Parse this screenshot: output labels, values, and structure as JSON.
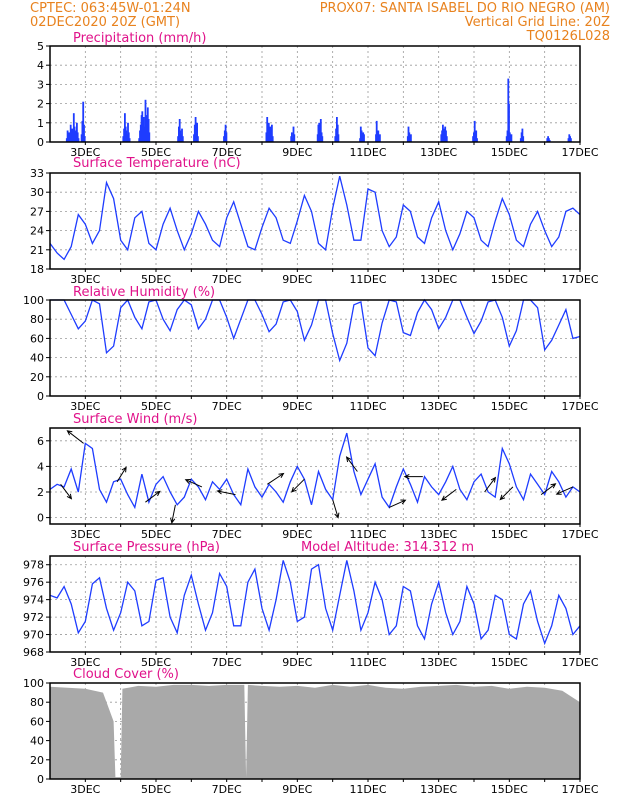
{
  "header": {
    "line1_left": "CPTEC:   063:45W-01:24N",
    "line1_right": "PROX07: SANTA ISABEL DO RIO NEGRO (AM)",
    "line2_left": "02DEC2020 20Z (GMT)",
    "line2_right": "Vertical Grid Line: 20Z",
    "line3_right": "TQ0126L028"
  },
  "colors": {
    "header": "#e8821e",
    "title": "#e0128a",
    "series": "#1e3cff",
    "cloud": "#a9a9a9"
  },
  "chart_data": [
    {
      "type": "bar",
      "title": "Precipitation (mm/h)",
      "x_tick_labels": [
        "3DEC",
        "5DEC",
        "7DEC",
        "9DEC",
        "11DEC",
        "13DEC",
        "15DEC",
        "17DEC"
      ],
      "ylim": [
        0,
        5
      ],
      "y_ticks": [
        "0",
        "1",
        "2",
        "3",
        "4",
        "5"
      ],
      "x_unit": "days since 02DEC2020 20Z",
      "bursts": [
        {
          "x": 0.45,
          "values": [
            0.2,
            0.6,
            0.4,
            0.5,
            0.3,
            0.9,
            0.5,
            0.7,
            0.4,
            1.5,
            0.8,
            0.6,
            0.3,
            1.0,
            0.5,
            0.2
          ]
        },
        {
          "x": 0.87,
          "values": [
            0.4,
            1.1,
            2.1,
            0.9,
            0.3
          ]
        },
        {
          "x": 2.05,
          "values": [
            0.3,
            0.7,
            1.5,
            0.8,
            0.6,
            0.4,
            1.0,
            0.5,
            0.2
          ]
        },
        {
          "x": 2.5,
          "values": [
            0.2,
            0.6,
            0.9,
            1.4,
            1.6,
            1.1,
            1.3,
            0.8,
            2.2,
            1.4,
            0.6,
            1.8,
            1.2,
            0.5
          ]
        },
        {
          "x": 3.6,
          "values": [
            0.3,
            0.8,
            1.2,
            0.6,
            0.4,
            0.7,
            0.3
          ]
        },
        {
          "x": 4.05,
          "values": [
            0.4,
            0.9,
            1.3,
            0.7,
            1.0,
            0.3
          ]
        },
        {
          "x": 4.9,
          "values": [
            0.3,
            0.6,
            0.9,
            0.5
          ]
        },
        {
          "x": 6.1,
          "values": [
            0.5,
            1.3,
            0.7,
            1.0,
            0.6,
            0.8,
            0.4,
            0.9,
            0.3
          ]
        },
        {
          "x": 6.8,
          "values": [
            0.3,
            0.5,
            0.2,
            0.8,
            0.4
          ]
        },
        {
          "x": 7.55,
          "values": [
            0.4,
            0.9,
            1.0,
            0.7,
            1.2,
            0.5,
            0.3
          ]
        },
        {
          "x": 8.05,
          "values": [
            0.3,
            0.7,
            1.3,
            0.9,
            0.4
          ]
        },
        {
          "x": 8.75,
          "values": [
            0.2,
            0.8,
            0.6,
            0.3,
            0.5,
            0.4
          ]
        },
        {
          "x": 9.2,
          "values": [
            0.4,
            1.1,
            0.5,
            0.6,
            0.3,
            0.4
          ]
        },
        {
          "x": 10.1,
          "values": [
            0.3,
            0.8,
            0.5,
            0.2,
            0.4
          ]
        },
        {
          "x": 11.05,
          "values": [
            0.4,
            0.6,
            0.9,
            0.7,
            0.5,
            0.8,
            0.6,
            0.3
          ]
        },
        {
          "x": 11.95,
          "values": [
            0.3,
            0.5,
            1.1,
            0.4,
            0.6,
            0.2
          ]
        },
        {
          "x": 12.9,
          "values": [
            0.3,
            0.6,
            3.3,
            2.0,
            0.5,
            0.3,
            0.4
          ]
        },
        {
          "x": 13.3,
          "values": [
            0.2,
            0.5,
            0.7,
            0.3
          ]
        },
        {
          "x": 14.05,
          "values": [
            0.2,
            0.3,
            0.2,
            0.1
          ]
        },
        {
          "x": 14.65,
          "values": [
            0.2,
            0.4,
            0.3,
            0.2
          ]
        }
      ]
    },
    {
      "type": "line",
      "title": "Surface Temperature (nC)",
      "x_tick_labels": [
        "3DEC",
        "5DEC",
        "7DEC",
        "9DEC",
        "11DEC",
        "13DEC",
        "15DEC",
        "17DEC"
      ],
      "ylim": [
        18,
        33
      ],
      "y_ticks": [
        "18",
        "21",
        "24",
        "27",
        "30",
        "33"
      ],
      "x": [
        0,
        0.2,
        0.4,
        0.6,
        0.8,
        1.0,
        1.2,
        1.4,
        1.6,
        1.8,
        2.0,
        2.2,
        2.4,
        2.6,
        2.8,
        3.0,
        3.2,
        3.4,
        3.6,
        3.8,
        4.0,
        4.2,
        4.4,
        4.6,
        4.8,
        5.0,
        5.2,
        5.4,
        5.6,
        5.8,
        6.0,
        6.2,
        6.4,
        6.6,
        6.8,
        7.0,
        7.2,
        7.4,
        7.6,
        7.8,
        8.0,
        8.2,
        8.4,
        8.6,
        8.8,
        9.0,
        9.2,
        9.4,
        9.6,
        9.8,
        10.0,
        10.2,
        10.4,
        10.6,
        10.8,
        11.0,
        11.2,
        11.4,
        11.6,
        11.8,
        12.0,
        12.2,
        12.4,
        12.6,
        12.8,
        13.0,
        13.2,
        13.4,
        13.6,
        13.8,
        14.0,
        14.2,
        14.4,
        14.6,
        14.8,
        15.0
      ],
      "values": [
        22,
        20.5,
        19.5,
        21.5,
        26.5,
        25,
        22,
        24,
        31.5,
        29,
        22.5,
        21,
        26,
        27,
        22,
        21,
        25,
        27.5,
        24,
        21,
        23.5,
        27,
        25,
        22.5,
        21.5,
        26,
        28.5,
        25,
        21.5,
        21,
        24.5,
        27.5,
        26,
        22.5,
        22,
        25.5,
        29.5,
        27,
        22,
        21,
        27.5,
        32.5,
        28,
        22.5,
        22.5,
        30.5,
        30,
        24,
        21.5,
        23,
        28,
        27,
        23,
        22,
        26,
        28.5,
        24,
        21,
        23.5,
        27,
        26,
        22.5,
        21.5,
        25.5,
        29,
        26.5,
        22.5,
        21.5,
        25,
        27,
        24,
        21.5,
        23,
        27,
        27.5,
        26.5
      ]
    },
    {
      "type": "line",
      "title": "Relative Humidity (%)",
      "x_tick_labels": [
        "3DEC",
        "5DEC",
        "7DEC",
        "9DEC",
        "11DEC",
        "13DEC",
        "15DEC",
        "17DEC"
      ],
      "ylim": [
        0,
        100
      ],
      "y_ticks": [
        "0",
        "20",
        "40",
        "60",
        "80",
        "100"
      ],
      "x": [
        0,
        0.2,
        0.4,
        0.6,
        0.8,
        1.0,
        1.2,
        1.4,
        1.6,
        1.8,
        2.0,
        2.2,
        2.4,
        2.6,
        2.8,
        3.0,
        3.2,
        3.4,
        3.6,
        3.8,
        4.0,
        4.2,
        4.4,
        4.6,
        4.8,
        5.0,
        5.2,
        5.4,
        5.6,
        5.8,
        6.0,
        6.2,
        6.4,
        6.6,
        6.8,
        7.0,
        7.2,
        7.4,
        7.6,
        7.8,
        8.0,
        8.2,
        8.4,
        8.6,
        8.8,
        9.0,
        9.2,
        9.4,
        9.6,
        9.8,
        10.0,
        10.2,
        10.4,
        10.6,
        10.8,
        11.0,
        11.2,
        11.4,
        11.6,
        11.8,
        12.0,
        12.2,
        12.4,
        12.6,
        12.8,
        13.0,
        13.2,
        13.4,
        13.6,
        13.8,
        14.0,
        14.2,
        14.4,
        14.6,
        14.8,
        15.0
      ],
      "values": [
        100,
        100,
        100,
        85,
        70,
        78,
        100,
        96,
        45,
        52,
        92,
        100,
        82,
        70,
        98,
        100,
        80,
        68,
        90,
        100,
        95,
        70,
        80,
        100,
        100,
        82,
        60,
        80,
        100,
        100,
        85,
        67,
        75,
        98,
        100,
        88,
        58,
        74,
        100,
        100,
        65,
        37,
        55,
        95,
        98,
        50,
        42,
        76,
        100,
        98,
        66,
        63,
        87,
        100,
        90,
        70,
        82,
        100,
        100,
        82,
        65,
        78,
        98,
        100,
        82,
        52,
        68,
        100,
        100,
        92,
        48,
        58,
        74,
        90,
        60,
        62
      ]
    },
    {
      "type": "line",
      "title": "Surface Wind (m/s)",
      "x_tick_labels": [
        "3DEC",
        "5DEC",
        "7DEC",
        "9DEC",
        "11DEC",
        "13DEC",
        "15DEC",
        "17DEC"
      ],
      "ylim": [
        -0.5,
        7
      ],
      "y_ticks": [
        "0",
        "2",
        "4",
        "6"
      ],
      "x": [
        0,
        0.2,
        0.4,
        0.6,
        0.8,
        1.0,
        1.2,
        1.4,
        1.6,
        1.8,
        2.0,
        2.2,
        2.4,
        2.6,
        2.8,
        3.0,
        3.2,
        3.4,
        3.6,
        3.8,
        4.0,
        4.2,
        4.4,
        4.6,
        4.8,
        5.0,
        5.2,
        5.4,
        5.6,
        5.8,
        6.0,
        6.2,
        6.4,
        6.6,
        6.8,
        7.0,
        7.2,
        7.4,
        7.6,
        7.8,
        8.0,
        8.2,
        8.4,
        8.6,
        8.8,
        9.0,
        9.2,
        9.4,
        9.6,
        9.8,
        10.0,
        10.2,
        10.4,
        10.6,
        10.8,
        11.0,
        11.2,
        11.4,
        11.6,
        11.8,
        12.0,
        12.2,
        12.4,
        12.6,
        12.8,
        13.0,
        13.2,
        13.4,
        13.6,
        13.8,
        14.0,
        14.2,
        14.4,
        14.6,
        14.8,
        15.0
      ],
      "values": [
        2.2,
        2.6,
        2.4,
        3.8,
        2.0,
        5.8,
        5.4,
        2.2,
        1.2,
        2.8,
        3.0,
        1.8,
        0.8,
        3.4,
        1.2,
        2.6,
        3.2,
        2.0,
        1.0,
        1.6,
        3.0,
        2.4,
        1.4,
        2.8,
        2.2,
        3.0,
        1.8,
        1.0,
        3.8,
        2.4,
        1.6,
        2.6,
        2.0,
        1.2,
        2.8,
        4.0,
        3.0,
        1.0,
        3.6,
        2.2,
        1.4,
        4.8,
        6.6,
        3.6,
        1.8,
        3.0,
        4.2,
        1.6,
        0.8,
        2.4,
        3.8,
        2.6,
        1.2,
        3.2,
        2.4,
        1.8,
        2.8,
        4.0,
        2.2,
        1.4,
        2.8,
        3.4,
        2.0,
        1.6,
        5.4,
        4.2,
        2.4,
        1.4,
        3.4,
        2.6,
        1.8,
        3.6,
        2.8,
        1.6,
        2.4,
        2.0
      ],
      "wind_arrows": [
        {
          "x": 0.3,
          "u": 0.6,
          "v": -0.8
        },
        {
          "x": 0.95,
          "u": -0.9,
          "v": 0.7
        },
        {
          "x": 1.9,
          "u": 0.5,
          "v": 0.8
        },
        {
          "x": 2.7,
          "u": 0.8,
          "v": 0.6
        },
        {
          "x": 3.55,
          "u": -0.2,
          "v": -1.0
        },
        {
          "x": 4.3,
          "u": -0.9,
          "v": 0.4
        },
        {
          "x": 5.25,
          "u": -1.0,
          "v": 0.2
        },
        {
          "x": 6.15,
          "u": 0.9,
          "v": 0.6
        },
        {
          "x": 7.2,
          "u": -0.7,
          "v": -0.7
        },
        {
          "x": 8.0,
          "u": 0.3,
          "v": -1.0
        },
        {
          "x": 8.7,
          "u": -0.6,
          "v": 0.8
        },
        {
          "x": 9.6,
          "u": 0.9,
          "v": 0.4
        },
        {
          "x": 10.55,
          "u": -1.0,
          "v": 0.0
        },
        {
          "x": 11.5,
          "u": -0.8,
          "v": -0.6
        },
        {
          "x": 12.3,
          "u": 0.6,
          "v": 0.8
        },
        {
          "x": 13.1,
          "u": -0.7,
          "v": -0.7
        },
        {
          "x": 13.9,
          "u": 0.8,
          "v": 0.6
        },
        {
          "x": 14.8,
          "u": -0.9,
          "v": -0.4
        }
      ]
    },
    {
      "type": "line",
      "title": "Surface Pressure (hPa)",
      "annotation": "Model Altitude: 314.312 m",
      "x_tick_labels": [
        "3DEC",
        "5DEC",
        "7DEC",
        "9DEC",
        "11DEC",
        "13DEC",
        "15DEC",
        "17DEC"
      ],
      "ylim": [
        968,
        979
      ],
      "y_ticks": [
        "968",
        "970",
        "972",
        "974",
        "976",
        "978"
      ],
      "x": [
        0,
        0.2,
        0.4,
        0.6,
        0.8,
        1.0,
        1.2,
        1.4,
        1.6,
        1.8,
        2.0,
        2.2,
        2.4,
        2.6,
        2.8,
        3.0,
        3.2,
        3.4,
        3.6,
        3.8,
        4.0,
        4.2,
        4.4,
        4.6,
        4.8,
        5.0,
        5.2,
        5.4,
        5.6,
        5.8,
        6.0,
        6.2,
        6.4,
        6.6,
        6.8,
        7.0,
        7.2,
        7.4,
        7.6,
        7.8,
        8.0,
        8.2,
        8.4,
        8.6,
        8.8,
        9.0,
        9.2,
        9.4,
        9.6,
        9.8,
        10.0,
        10.2,
        10.4,
        10.6,
        10.8,
        11.0,
        11.2,
        11.4,
        11.6,
        11.8,
        12.0,
        12.2,
        12.4,
        12.6,
        12.8,
        13.0,
        13.2,
        13.4,
        13.6,
        13.8,
        14.0,
        14.2,
        14.4,
        14.6,
        14.8,
        15.0
      ],
      "values": [
        974.5,
        974.2,
        975.5,
        973.5,
        970.2,
        971.5,
        975.8,
        976.5,
        973.0,
        970.5,
        972.5,
        976.0,
        975.0,
        971.0,
        971.5,
        976.2,
        976.5,
        972.0,
        970.2,
        974.5,
        976.8,
        973.5,
        970.5,
        972.5,
        977.0,
        975.5,
        971.0,
        971.0,
        976.0,
        977.5,
        973.0,
        970.5,
        974.0,
        978.5,
        976.0,
        971.5,
        972.0,
        977.5,
        978.0,
        973.0,
        970.5,
        974.5,
        978.5,
        975.0,
        970.5,
        972.5,
        976.0,
        974.0,
        970.0,
        971.0,
        975.5,
        975.0,
        971.0,
        969.5,
        973.5,
        976.0,
        972.5,
        970.0,
        971.5,
        975.5,
        973.5,
        969.5,
        970.5,
        974.5,
        974.0,
        970.0,
        969.5,
        973.5,
        975.0,
        971.5,
        969.0,
        971.0,
        974.5,
        973.0,
        970.0,
        971.0
      ]
    },
    {
      "type": "area",
      "title": "Cloud Cover (%)",
      "x_tick_labels": [
        "3DEC",
        "5DEC",
        "7DEC",
        "9DEC",
        "11DEC",
        "13DEC",
        "15DEC",
        "17DEC"
      ],
      "ylim": [
        0,
        100
      ],
      "y_ticks": [
        "0",
        "20",
        "40",
        "60",
        "80",
        "100"
      ],
      "x": [
        0,
        0.5,
        1.0,
        1.5,
        1.8,
        1.85,
        2.0,
        2.05,
        2.5,
        3.0,
        3.5,
        4.0,
        4.5,
        5.0,
        5.5,
        5.55,
        5.6,
        6.0,
        6.5,
        7.0,
        7.5,
        8.0,
        8.5,
        9.0,
        9.5,
        10.0,
        10.5,
        11.0,
        11.5,
        12.0,
        12.5,
        13.0,
        13.5,
        14.0,
        14.5,
        15.0
      ],
      "values": [
        96,
        95,
        94,
        90,
        60,
        2,
        2,
        94,
        97,
        96,
        98,
        98,
        97,
        98,
        98,
        2,
        98,
        97,
        96,
        97,
        95,
        98,
        96,
        98,
        95,
        94,
        96,
        97,
        98,
        96,
        97,
        94,
        96,
        95,
        92,
        80
      ]
    }
  ]
}
